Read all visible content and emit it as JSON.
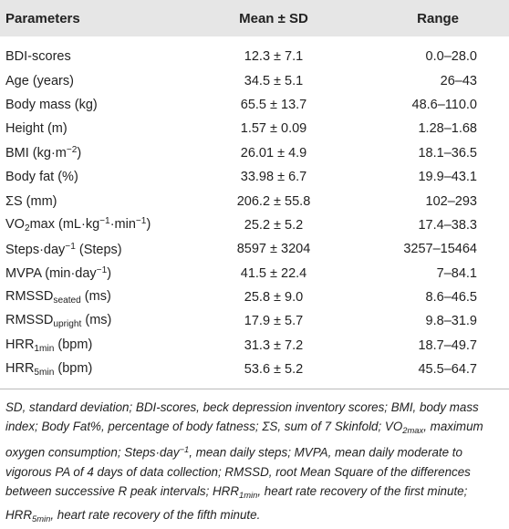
{
  "table": {
    "header": [
      "Parameters",
      "Mean ± SD",
      "Range"
    ],
    "rows": [
      [
        [
          "BDI-scores"
        ],
        "12.3 ± 7.1",
        "0.0–28.0"
      ],
      [
        [
          "Age (years)"
        ],
        "34.5 ± 5.1",
        "26–43"
      ],
      [
        [
          "Body mass (kg)"
        ],
        "65.5 ± 13.7",
        "48.6–110.0"
      ],
      [
        [
          "Height (m)"
        ],
        "1.57 ± 0.09",
        "1.28–1.68"
      ],
      [
        [
          "BMI (kg·m",
          {
            "text": "−2",
            "style": "sup"
          },
          ")"
        ],
        "26.01 ± 4.9",
        "18.1–36.5"
      ],
      [
        [
          "Body fat (%)"
        ],
        "33.98 ± 6.7",
        "19.9–43.1"
      ],
      [
        [
          "ΣS (mm)"
        ],
        "206.2 ± 55.8",
        "102–293"
      ],
      [
        [
          "VO",
          {
            "text": "2",
            "style": "sub"
          },
          "max (mL·kg",
          {
            "text": "−1",
            "style": "sup"
          },
          "·min",
          {
            "text": "−1",
            "style": "sup"
          },
          ")"
        ],
        "25.2 ± 5.2",
        "17.4–38.3"
      ],
      [
        [
          "Steps·day",
          {
            "text": "−1",
            "style": "sup"
          },
          " (Steps)"
        ],
        "8597 ± 3204",
        "3257–15464"
      ],
      [
        [
          "MVPA (min·day",
          {
            "text": "−1",
            "style": "sup"
          },
          ")"
        ],
        "41.5 ± 22.4",
        "7–84.1"
      ],
      [
        [
          "RMSSD",
          {
            "text": "seated",
            "style": "sub"
          },
          " (ms)"
        ],
        "25.8 ± 9.0",
        "8.6–46.5"
      ],
      [
        [
          "RMSSD",
          {
            "text": "upright",
            "style": "sub"
          },
          " (ms)"
        ],
        "17.9 ± 5.7",
        "9.8–31.9"
      ],
      [
        [
          "HRR",
          {
            "text": "1min",
            "style": "sub"
          },
          " (bpm)"
        ],
        "31.3 ± 7.2",
        "18.7–49.7"
      ],
      [
        [
          "HRR",
          {
            "text": "5min",
            "style": "sub"
          },
          " (bpm)"
        ],
        "53.6 ± 5.2",
        "45.5–64.7"
      ]
    ]
  },
  "footnote": [
    "SD, standard deviation; BDI-scores, beck depression inventory scores; BMI, body mass index; Body Fat%, percentage of body fatness; ΣS, sum of 7 Skinfold; VO",
    {
      "text": "2max",
      "style": "sub"
    },
    ", maximum oxygen consumption; Steps·day",
    {
      "text": "−1",
      "style": "sup"
    },
    ", mean daily steps; MVPA, mean daily moderate to vigorous PA of 4 days of data collection; RMSSD, root Mean Square of the differences between successive R peak intervals; HRR",
    {
      "text": "1min",
      "style": "sub"
    },
    ", heart rate recovery of the first minute; HRR",
    {
      "text": "5min",
      "style": "sub"
    },
    ", heart rate recovery of the fifth minute."
  ]
}
